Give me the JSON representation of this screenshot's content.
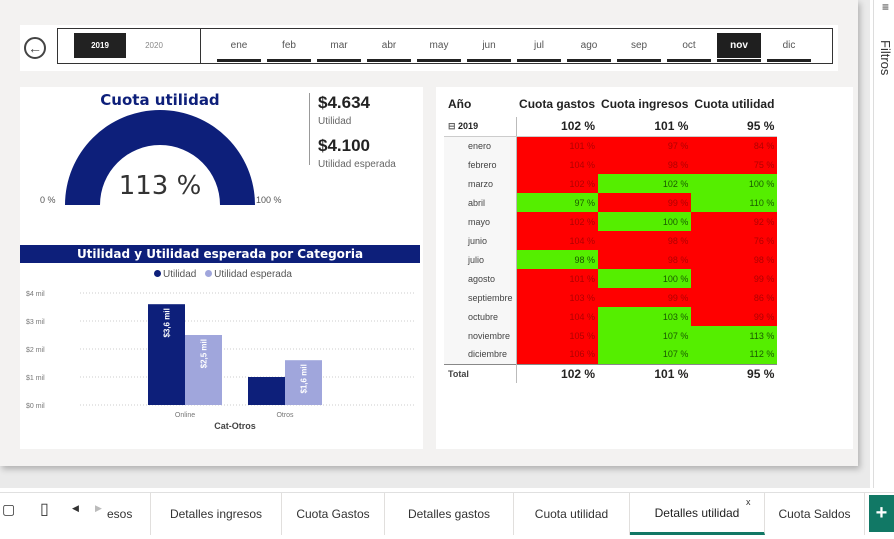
{
  "filter_bar": {
    "years": [
      {
        "label": "2019",
        "selected": true
      },
      {
        "label": "2020",
        "selected": false
      }
    ],
    "months": [
      {
        "label": "ene",
        "selected": false
      },
      {
        "label": "feb",
        "selected": false
      },
      {
        "label": "mar",
        "selected": false
      },
      {
        "label": "abr",
        "selected": false
      },
      {
        "label": "may",
        "selected": false
      },
      {
        "label": "jun",
        "selected": false
      },
      {
        "label": "jul",
        "selected": false
      },
      {
        "label": "ago",
        "selected": false
      },
      {
        "label": "sep",
        "selected": false
      },
      {
        "label": "oct",
        "selected": false
      },
      {
        "label": "nov",
        "selected": true
      },
      {
        "label": "dic",
        "selected": false
      }
    ]
  },
  "gauge": {
    "title": "Cuota utilidad",
    "value_label": "113 %",
    "value": 1.13,
    "min_label": "0 %",
    "max_label": "100 %",
    "color": "#0d1f7a"
  },
  "kpis": [
    {
      "value": "$4.634",
      "label": "Utilidad"
    },
    {
      "value": "$4.100",
      "label": "Utilidad esperada"
    }
  ],
  "bar_chart_title": "Utilidad y Utilidad esperada por Categoria",
  "chart_data": {
    "type": "bar",
    "title": "Utilidad y Utilidad esperada por Categoria",
    "categories": [
      "Online",
      "Otros"
    ],
    "xlabel": "Cat-Otros",
    "ylabel": "",
    "ylim": [
      0,
      4
    ],
    "yticks": [
      "$0 mil",
      "$1 mil",
      "$2 mil",
      "$3 mil",
      "$4 mil"
    ],
    "legend_position": "top-center",
    "grid": true,
    "series": [
      {
        "name": "Utilidad",
        "values": [
          3.6,
          1.0
        ],
        "labels": [
          "$3,6 mil",
          ""
        ],
        "color": "#0d1f7a"
      },
      {
        "name": "Utilidad esperada",
        "values": [
          2.5,
          1.6
        ],
        "labels": [
          "$2,5 mil",
          "$1,6 mil"
        ],
        "color": "#a0a6dc"
      }
    ]
  },
  "matrix": {
    "headers": [
      "Año",
      "Cuota gastos",
      "Cuota ingresos",
      "Cuota utilidad"
    ],
    "year_row": {
      "label": "2019",
      "values": [
        "102 %",
        "101 %",
        "95 %"
      ]
    },
    "rows": [
      {
        "label": "enero",
        "values": [
          "101 %",
          "97 %",
          "84 %"
        ],
        "status": [
          "red",
          "red",
          "red"
        ]
      },
      {
        "label": "febrero",
        "values": [
          "104 %",
          "98 %",
          "75 %"
        ],
        "status": [
          "red",
          "red",
          "red"
        ]
      },
      {
        "label": "marzo",
        "values": [
          "102 %",
          "102 %",
          "100 %"
        ],
        "status": [
          "red",
          "grn",
          "grn"
        ]
      },
      {
        "label": "abril",
        "values": [
          "97 %",
          "99 %",
          "110 %"
        ],
        "status": [
          "grn",
          "red",
          "grn"
        ]
      },
      {
        "label": "mayo",
        "values": [
          "102 %",
          "100 %",
          "92 %"
        ],
        "status": [
          "red",
          "grn",
          "red"
        ]
      },
      {
        "label": "junio",
        "values": [
          "104 %",
          "98 %",
          "76 %"
        ],
        "status": [
          "red",
          "red",
          "red"
        ]
      },
      {
        "label": "julio",
        "values": [
          "98 %",
          "98 %",
          "98 %"
        ],
        "status": [
          "grn",
          "red",
          "red"
        ]
      },
      {
        "label": "agosto",
        "values": [
          "101 %",
          "100 %",
          "99 %"
        ],
        "status": [
          "red",
          "grn",
          "red"
        ]
      },
      {
        "label": "septiembre",
        "values": [
          "103 %",
          "99 %",
          "86 %"
        ],
        "status": [
          "red",
          "red",
          "red"
        ]
      },
      {
        "label": "octubre",
        "values": [
          "104 %",
          "103 %",
          "99 %"
        ],
        "status": [
          "red",
          "grn",
          "red"
        ]
      },
      {
        "label": "noviembre",
        "values": [
          "105 %",
          "107 %",
          "113 %"
        ],
        "status": [
          "red",
          "grn",
          "grn"
        ]
      },
      {
        "label": "diciembre",
        "values": [
          "106 %",
          "107 %",
          "112 %"
        ],
        "status": [
          "red",
          "grn",
          "grn"
        ]
      }
    ],
    "total_row": {
      "label": "Total",
      "values": [
        "102 %",
        "101 %",
        "95 %"
      ]
    }
  },
  "filters_pane": {
    "label": "Filtros"
  },
  "tabs": [
    {
      "label": "esos",
      "active": false
    },
    {
      "label": "Detalles ingresos",
      "active": false
    },
    {
      "label": "Cuota Gastos",
      "active": false
    },
    {
      "label": "Detalles gastos",
      "active": false
    },
    {
      "label": "Cuota utilidad",
      "active": false
    },
    {
      "label": "Detalles utilidad",
      "active": true
    },
    {
      "label": "Cuota Saldos",
      "active": false
    }
  ],
  "icons": {
    "back": "back-arrow-icon",
    "desktop": "desktop-view-icon",
    "mobile": "mobile-view-icon",
    "prev": "prev-tab-icon",
    "next": "next-tab-icon",
    "close": "close-tab-icon",
    "add": "add-page-icon"
  },
  "colors": {
    "red": "#ff0000",
    "green": "#55ee00",
    "navy": "#0d1f7a",
    "periwinkle": "#a0a6dc",
    "tab_accent": "#117865"
  }
}
